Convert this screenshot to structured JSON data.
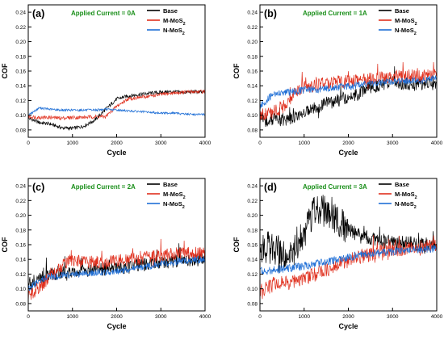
{
  "chart_data": [
    {
      "type": "line",
      "panel_label": "(a)",
      "annotation": "Applied Current = 0A",
      "xlabel": "Cycle",
      "ylabel": "COF",
      "xlim": [
        0,
        4000
      ],
      "ylim": [
        0.07,
        0.25
      ],
      "xticks": [
        0,
        1000,
        2000,
        3000,
        4000
      ],
      "yticks": [
        0.08,
        0.1,
        0.12,
        0.14,
        0.16,
        0.18,
        0.2,
        0.22,
        0.24
      ],
      "grid": false,
      "legend_position": "top-right",
      "series": [
        {
          "name": "Base",
          "x": [
            0,
            250,
            500,
            750,
            1000,
            1250,
            1500,
            1750,
            2000,
            2250,
            2500,
            2750,
            3000,
            3250,
            3500,
            3750,
            4000
          ],
          "values": [
            0.096,
            0.09,
            0.088,
            0.083,
            0.082,
            0.085,
            0.093,
            0.108,
            0.122,
            0.126,
            0.128,
            0.13,
            0.131,
            0.132,
            0.131,
            0.132,
            0.131
          ]
        },
        {
          "name": "M-MoS2",
          "x": [
            0,
            250,
            500,
            750,
            1000,
            1250,
            1500,
            1750,
            2000,
            2250,
            2500,
            2750,
            3000,
            3250,
            3500,
            3750,
            4000
          ],
          "values": [
            0.098,
            0.097,
            0.097,
            0.096,
            0.097,
            0.097,
            0.098,
            0.098,
            0.112,
            0.122,
            0.124,
            0.126,
            0.128,
            0.13,
            0.131,
            0.132,
            0.132
          ]
        },
        {
          "name": "N-MoS2",
          "x": [
            0,
            250,
            500,
            750,
            1000,
            1250,
            1500,
            1750,
            2000,
            2250,
            2500,
            2750,
            3000,
            3250,
            3500,
            3750,
            4000
          ],
          "values": [
            0.1,
            0.11,
            0.108,
            0.107,
            0.107,
            0.107,
            0.107,
            0.108,
            0.107,
            0.106,
            0.105,
            0.104,
            0.103,
            0.103,
            0.102,
            0.101,
            0.101
          ]
        }
      ]
    },
    {
      "type": "line",
      "panel_label": "(b)",
      "annotation": "Applied Current = 1A",
      "xlabel": "Cycle",
      "ylabel": "COF",
      "xlim": [
        0,
        4000
      ],
      "ylim": [
        0.07,
        0.25
      ],
      "xticks": [
        0,
        1000,
        2000,
        3000,
        4000
      ],
      "yticks": [
        0.08,
        0.1,
        0.12,
        0.14,
        0.16,
        0.18,
        0.2,
        0.22,
        0.24
      ],
      "grid": false,
      "legend_position": "top-right",
      "series": [
        {
          "name": "Base",
          "x": [
            0,
            250,
            500,
            750,
            1000,
            1250,
            1500,
            1750,
            2000,
            2250,
            2500,
            2750,
            3000,
            3250,
            3500,
            3750,
            4000
          ],
          "values": [
            0.09,
            0.094,
            0.094,
            0.096,
            0.104,
            0.11,
            0.116,
            0.12,
            0.125,
            0.13,
            0.138,
            0.142,
            0.145,
            0.143,
            0.142,
            0.143,
            0.142
          ]
        },
        {
          "name": "M-MoS2",
          "x": [
            0,
            250,
            500,
            750,
            1000,
            1250,
            1500,
            1750,
            2000,
            2250,
            2500,
            2750,
            3000,
            3250,
            3500,
            3750,
            4000
          ],
          "values": [
            0.1,
            0.103,
            0.11,
            0.128,
            0.138,
            0.14,
            0.143,
            0.145,
            0.146,
            0.148,
            0.15,
            0.152,
            0.153,
            0.152,
            0.154,
            0.153,
            0.155
          ]
        },
        {
          "name": "N-MoS2",
          "x": [
            0,
            250,
            500,
            750,
            1000,
            1250,
            1500,
            1750,
            2000,
            2250,
            2500,
            2750,
            3000,
            3250,
            3500,
            3750,
            4000
          ],
          "values": [
            0.112,
            0.126,
            0.13,
            0.132,
            0.134,
            0.135,
            0.136,
            0.138,
            0.139,
            0.141,
            0.143,
            0.144,
            0.146,
            0.146,
            0.147,
            0.148,
            0.15
          ]
        }
      ]
    },
    {
      "type": "line",
      "panel_label": "(c)",
      "annotation": "Applied Current = 2A",
      "xlabel": "Cycle",
      "ylabel": "COF",
      "xlim": [
        0,
        4000
      ],
      "ylim": [
        0.07,
        0.25
      ],
      "xticks": [
        0,
        1000,
        2000,
        3000,
        4000
      ],
      "yticks": [
        0.08,
        0.1,
        0.12,
        0.14,
        0.16,
        0.18,
        0.2,
        0.22,
        0.24
      ],
      "grid": false,
      "legend_position": "top-right",
      "series": [
        {
          "name": "Base",
          "x": [
            0,
            250,
            500,
            750,
            1000,
            1250,
            1500,
            1750,
            2000,
            2250,
            2500,
            2750,
            3000,
            3250,
            3500,
            3750,
            4000
          ],
          "values": [
            0.106,
            0.114,
            0.119,
            0.122,
            0.124,
            0.125,
            0.126,
            0.127,
            0.128,
            0.13,
            0.132,
            0.134,
            0.136,
            0.137,
            0.139,
            0.14,
            0.142
          ]
        },
        {
          "name": "M-MoS2",
          "x": [
            0,
            250,
            500,
            750,
            1000,
            1250,
            1500,
            1750,
            2000,
            2250,
            2500,
            2750,
            3000,
            3250,
            3500,
            3750,
            4000
          ],
          "values": [
            0.09,
            0.102,
            0.116,
            0.132,
            0.14,
            0.138,
            0.136,
            0.136,
            0.138,
            0.139,
            0.141,
            0.143,
            0.145,
            0.147,
            0.148,
            0.148,
            0.149
          ]
        },
        {
          "name": "N-MoS2",
          "x": [
            0,
            250,
            500,
            750,
            1000,
            1250,
            1500,
            1750,
            2000,
            2250,
            2500,
            2750,
            3000,
            3250,
            3500,
            3750,
            4000
          ],
          "values": [
            0.1,
            0.112,
            0.116,
            0.118,
            0.12,
            0.121,
            0.122,
            0.123,
            0.124,
            0.126,
            0.129,
            0.131,
            0.134,
            0.136,
            0.138,
            0.139,
            0.14
          ]
        }
      ]
    },
    {
      "type": "line",
      "panel_label": "(d)",
      "annotation": "Applied Current = 3A",
      "xlabel": "Cycle",
      "ylabel": "COF",
      "xlim": [
        0,
        4000
      ],
      "ylim": [
        0.07,
        0.25
      ],
      "xticks": [
        0,
        1000,
        2000,
        3000,
        4000
      ],
      "yticks": [
        0.08,
        0.1,
        0.12,
        0.14,
        0.16,
        0.18,
        0.2,
        0.22,
        0.24
      ],
      "grid": false,
      "legend_position": "top-right",
      "series": [
        {
          "name": "Base",
          "x": [
            0,
            250,
            500,
            750,
            1000,
            1250,
            1500,
            1750,
            2000,
            2250,
            2500,
            2750,
            3000,
            3250,
            3500,
            3750,
            4000
          ],
          "values": [
            0.15,
            0.16,
            0.145,
            0.148,
            0.175,
            0.21,
            0.205,
            0.195,
            0.18,
            0.172,
            0.168,
            0.165,
            0.163,
            0.162,
            0.161,
            0.16,
            0.159
          ]
        },
        {
          "name": "M-MoS2",
          "x": [
            0,
            250,
            500,
            750,
            1000,
            1250,
            1500,
            1750,
            2000,
            2250,
            2500,
            2750,
            3000,
            3250,
            3500,
            3750,
            4000
          ],
          "values": [
            0.098,
            0.104,
            0.108,
            0.11,
            0.115,
            0.12,
            0.126,
            0.132,
            0.138,
            0.143,
            0.147,
            0.15,
            0.152,
            0.154,
            0.156,
            0.157,
            0.158
          ]
        },
        {
          "name": "N-MoS2",
          "x": [
            0,
            250,
            500,
            750,
            1000,
            1250,
            1500,
            1750,
            2000,
            2250,
            2500,
            2750,
            3000,
            3250,
            3500,
            3750,
            4000
          ],
          "values": [
            0.124,
            0.125,
            0.127,
            0.129,
            0.131,
            0.134,
            0.137,
            0.14,
            0.143,
            0.146,
            0.148,
            0.15,
            0.151,
            0.152,
            0.153,
            0.154,
            0.155
          ]
        }
      ]
    }
  ],
  "colors": {
    "Base": "#000000",
    "M-MoS2": "#e0301e",
    "N-MoS2": "#1f6fd6",
    "annotation": "#1a8f1a"
  }
}
